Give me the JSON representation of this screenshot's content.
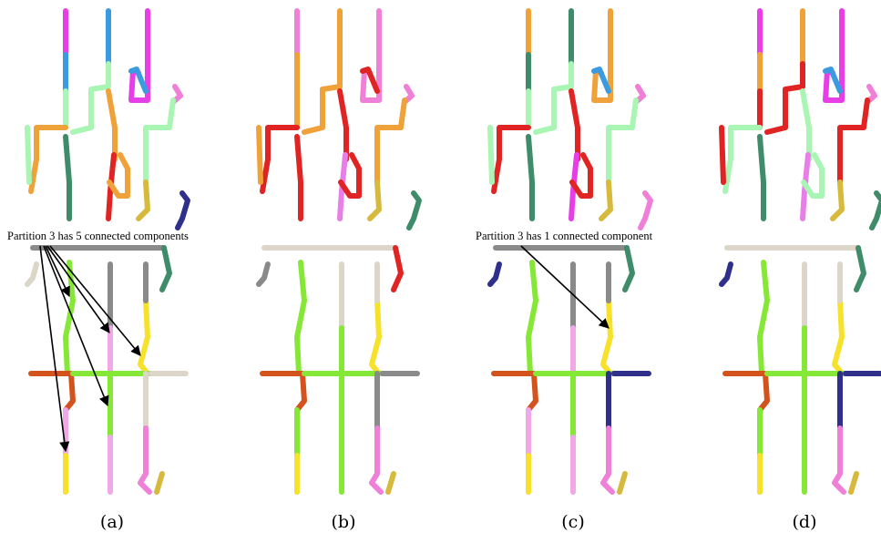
{
  "figure": {
    "panels": [
      {
        "label": "(a)",
        "annotation": "Partition 3 has 5 connected components"
      },
      {
        "label": "(b)",
        "annotation": ""
      },
      {
        "label": "(c)",
        "annotation": "Partition 3 has 1 connected component"
      },
      {
        "label": "(d)",
        "annotation": ""
      }
    ],
    "colors": {
      "magenta": "#e83ee8",
      "pink": "#ef7fd7",
      "blue": "#3b9be0",
      "mint": "#a9f5b4",
      "orange": "#f0a23a",
      "teal": "#3f8c6a",
      "olive": "#d7b93e",
      "navy": "#2f2f8c",
      "red": "#e02424",
      "green": "#86e836",
      "gray": "#8a8a8a",
      "beige": "#dcd6c8",
      "yellow": "#f7e12b",
      "rust": "#d4521c",
      "lightpink": "#f0a8e8",
      "violet": "#e87ee8"
    }
  }
}
